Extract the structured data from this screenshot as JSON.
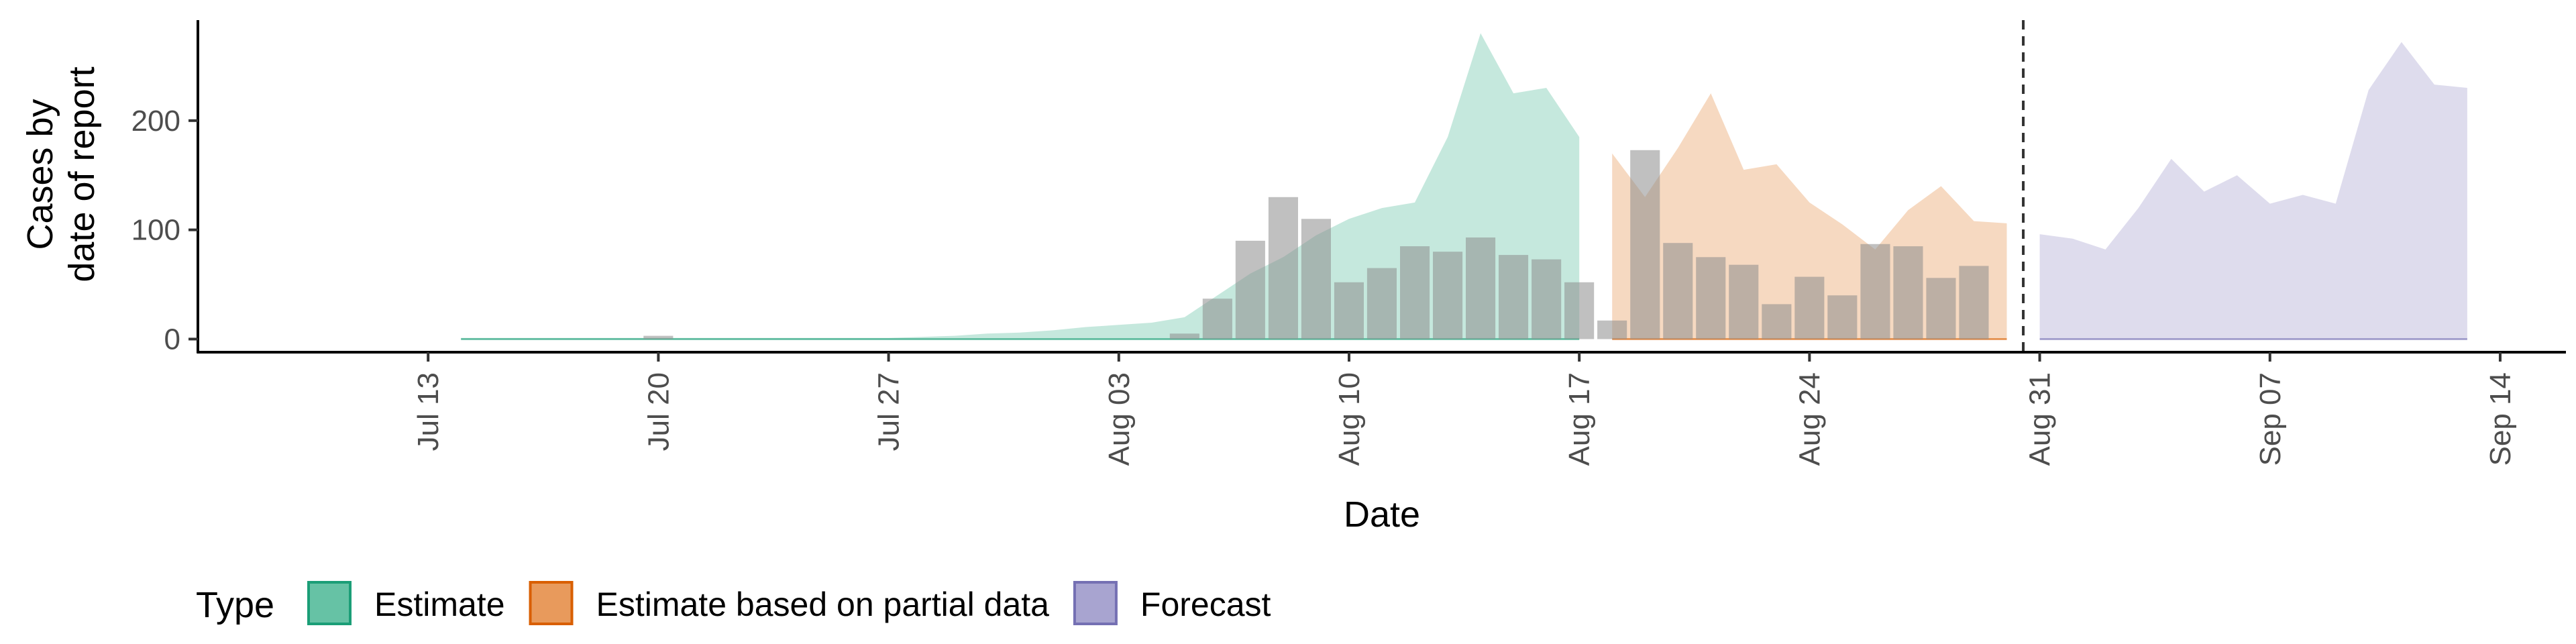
{
  "chart_data": {
    "type": "area",
    "xlabel": "Date",
    "ylabel_lines": [
      "Cases by",
      "date of report"
    ],
    "x_ticks": [
      "Jul 13",
      "Jul 20",
      "Jul 27",
      "Aug 03",
      "Aug 10",
      "Aug 17",
      "Aug 24",
      "Aug 31",
      "Sep 07",
      "Sep 14"
    ],
    "x_tick_dates": [
      "2020-07-13",
      "2020-07-20",
      "2020-07-27",
      "2020-08-03",
      "2020-08-10",
      "2020-08-17",
      "2020-08-24",
      "2020-08-31",
      "2020-09-07",
      "2020-09-14"
    ],
    "x_range": [
      "2020-07-06",
      "2020-09-16"
    ],
    "y_ticks": [
      0,
      100,
      200
    ],
    "y_range": [
      -12,
      292
    ],
    "forecast_date": "2020-08-30",
    "legend": {
      "title": "Type",
      "position": "bottom",
      "entries": [
        {
          "label": "Estimate",
          "fill": "#66c2a5",
          "stroke": "#1b9e77"
        },
        {
          "label": "Estimate based on partial data",
          "fill": "#e89a5c",
          "stroke": "#d95f02"
        },
        {
          "label": "Forecast",
          "fill": "#a8a4d0",
          "stroke": "#7570b3"
        }
      ]
    },
    "colors": {
      "estimate": "#1b9e77",
      "partial": "#d95f02",
      "forecast": "#7570b3",
      "bars": "#8c8c8c"
    },
    "series": [
      {
        "type_index": 0,
        "dates": [
          "2020-07-14",
          "2020-07-15",
          "2020-07-16",
          "2020-07-17",
          "2020-07-18",
          "2020-07-19",
          "2020-07-20",
          "2020-07-21",
          "2020-07-22",
          "2020-07-23",
          "2020-07-24",
          "2020-07-25",
          "2020-07-26",
          "2020-07-27",
          "2020-07-28",
          "2020-07-29",
          "2020-07-30",
          "2020-07-31",
          "2020-08-01",
          "2020-08-02",
          "2020-08-03",
          "2020-08-04",
          "2020-08-05",
          "2020-08-06",
          "2020-08-07",
          "2020-08-08",
          "2020-08-09",
          "2020-08-10",
          "2020-08-11",
          "2020-08-12",
          "2020-08-13",
          "2020-08-14",
          "2020-08-15",
          "2020-08-16",
          "2020-08-17"
        ],
        "upper": [
          1,
          1,
          1,
          1,
          1,
          1,
          1,
          1,
          1,
          1,
          1,
          1,
          1,
          1,
          2,
          3,
          5,
          6,
          8,
          11,
          13,
          15,
          20,
          40,
          60,
          75,
          95,
          110,
          120,
          125,
          185,
          280,
          225,
          230,
          185
        ],
        "lower": [
          0,
          0,
          0,
          0,
          0,
          0,
          0,
          0,
          0,
          0,
          0,
          0,
          0,
          0,
          0,
          0,
          0,
          0,
          0,
          0,
          0,
          0,
          0,
          0,
          0,
          0,
          0,
          0,
          0,
          0,
          0,
          0,
          0,
          0,
          0
        ]
      },
      {
        "type_index": 1,
        "dates": [
          "2020-08-18",
          "2020-08-19",
          "2020-08-20",
          "2020-08-21",
          "2020-08-22",
          "2020-08-23",
          "2020-08-24",
          "2020-08-25",
          "2020-08-26",
          "2020-08-27",
          "2020-08-28",
          "2020-08-29",
          "2020-08-30"
        ],
        "upper": [
          170,
          130,
          175,
          225,
          155,
          160,
          125,
          105,
          82,
          118,
          140,
          108,
          106
        ],
        "lower": [
          0,
          0,
          0,
          0,
          0,
          0,
          0,
          0,
          0,
          0,
          0,
          0,
          0
        ]
      },
      {
        "type_index": 2,
        "dates": [
          "2020-08-31",
          "2020-09-01",
          "2020-09-02",
          "2020-09-03",
          "2020-09-04",
          "2020-09-05",
          "2020-09-06",
          "2020-09-07",
          "2020-09-08",
          "2020-09-09",
          "2020-09-10",
          "2020-09-11",
          "2020-09-12",
          "2020-09-13"
        ],
        "upper": [
          96,
          92,
          82,
          120,
          165,
          135,
          150,
          124,
          132,
          124,
          228,
          272,
          233,
          230
        ],
        "lower": [
          0,
          0,
          0,
          0,
          0,
          0,
          0,
          0,
          0,
          0,
          0,
          0,
          0,
          0
        ]
      }
    ],
    "bars": {
      "dates": [
        "2020-07-20",
        "2020-08-05",
        "2020-08-06",
        "2020-08-07",
        "2020-08-08",
        "2020-08-09",
        "2020-08-10",
        "2020-08-11",
        "2020-08-12",
        "2020-08-13",
        "2020-08-14",
        "2020-08-15",
        "2020-08-16",
        "2020-08-17",
        "2020-08-18",
        "2020-08-19",
        "2020-08-20",
        "2020-08-21",
        "2020-08-22",
        "2020-08-23",
        "2020-08-24",
        "2020-08-25",
        "2020-08-26",
        "2020-08-27",
        "2020-08-28",
        "2020-08-29",
        "2020-08-30"
      ],
      "values": [
        3,
        5,
        37,
        90,
        130,
        110,
        52,
        65,
        85,
        80,
        93,
        77,
        73,
        52,
        17,
        173,
        88,
        75,
        68,
        32,
        57,
        40,
        87,
        85,
        56,
        67,
        0
      ]
    }
  }
}
